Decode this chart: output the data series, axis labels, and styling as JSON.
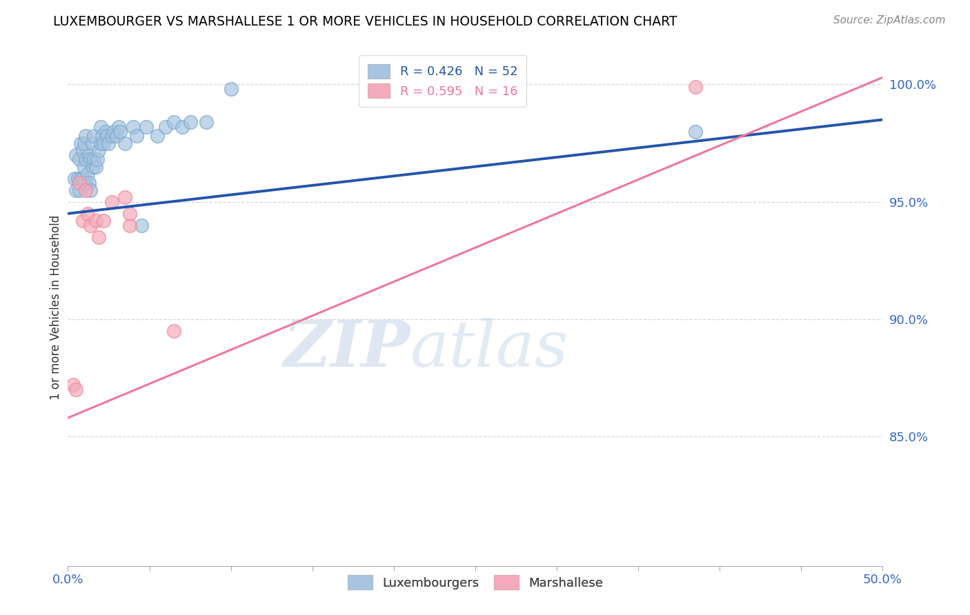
{
  "title": "LUXEMBOURGER VS MARSHALLESE 1 OR MORE VEHICLES IN HOUSEHOLD CORRELATION CHART",
  "source": "Source: ZipAtlas.com",
  "ylabel": "1 or more Vehicles in Household",
  "xlim": [
    0.0,
    0.5
  ],
  "ylim": [
    0.795,
    1.015
  ],
  "xticks": [
    0.0,
    0.05,
    0.1,
    0.15,
    0.2,
    0.25,
    0.3,
    0.35,
    0.4,
    0.45,
    0.5
  ],
  "xticklabels": [
    "0.0%",
    "",
    "",
    "",
    "",
    "",
    "",
    "",
    "",
    "",
    "50.0%"
  ],
  "yticks": [
    0.85,
    0.9,
    0.95,
    1.0
  ],
  "yticklabels": [
    "85.0%",
    "90.0%",
    "95.0%",
    "100.0%"
  ],
  "blue_R": 0.426,
  "blue_N": 52,
  "pink_R": 0.595,
  "pink_N": 16,
  "blue_color": "#A8C4E0",
  "pink_color": "#F4AABB",
  "blue_edge_color": "#7AAAD0",
  "pink_edge_color": "#EE8899",
  "blue_line_color": "#2255AA",
  "pink_line_color": "#EE7799",
  "watermark_zip": "ZIP",
  "watermark_atlas": "atlas",
  "blue_scatter_x": [
    0.004,
    0.005,
    0.005,
    0.006,
    0.007,
    0.007,
    0.008,
    0.008,
    0.009,
    0.009,
    0.01,
    0.01,
    0.011,
    0.011,
    0.011,
    0.012,
    0.013,
    0.013,
    0.014,
    0.014,
    0.015,
    0.015,
    0.016,
    0.016,
    0.017,
    0.018,
    0.019,
    0.02,
    0.02,
    0.021,
    0.022,
    0.023,
    0.024,
    0.025,
    0.027,
    0.028,
    0.03,
    0.031,
    0.032,
    0.035,
    0.04,
    0.042,
    0.045,
    0.048,
    0.055,
    0.06,
    0.065,
    0.07,
    0.075,
    0.085,
    0.1,
    0.385
  ],
  "blue_scatter_y": [
    0.96,
    0.955,
    0.97,
    0.96,
    0.955,
    0.968,
    0.96,
    0.975,
    0.96,
    0.972,
    0.965,
    0.975,
    0.958,
    0.968,
    0.978,
    0.962,
    0.958,
    0.97,
    0.955,
    0.968,
    0.965,
    0.975,
    0.968,
    0.978,
    0.965,
    0.968,
    0.972,
    0.975,
    0.982,
    0.978,
    0.975,
    0.98,
    0.978,
    0.975,
    0.978,
    0.98,
    0.978,
    0.982,
    0.98,
    0.975,
    0.982,
    0.978,
    0.94,
    0.982,
    0.978,
    0.982,
    0.984,
    0.982,
    0.984,
    0.984,
    0.998,
    0.98
  ],
  "pink_scatter_x": [
    0.003,
    0.005,
    0.007,
    0.009,
    0.011,
    0.012,
    0.014,
    0.017,
    0.019,
    0.022,
    0.027,
    0.035,
    0.038,
    0.038,
    0.065,
    0.385
  ],
  "pink_scatter_y": [
    0.872,
    0.87,
    0.958,
    0.942,
    0.955,
    0.945,
    0.94,
    0.942,
    0.935,
    0.942,
    0.95,
    0.952,
    0.94,
    0.945,
    0.895,
    0.999
  ],
  "blue_trend_x": [
    0.0,
    0.5
  ],
  "blue_trend_y": [
    0.945,
    0.985
  ],
  "pink_trend_x": [
    0.0,
    0.5
  ],
  "pink_trend_y": [
    0.858,
    1.003
  ],
  "legend_blue_label": "Luxembourgers",
  "legend_pink_label": "Marshallese"
}
